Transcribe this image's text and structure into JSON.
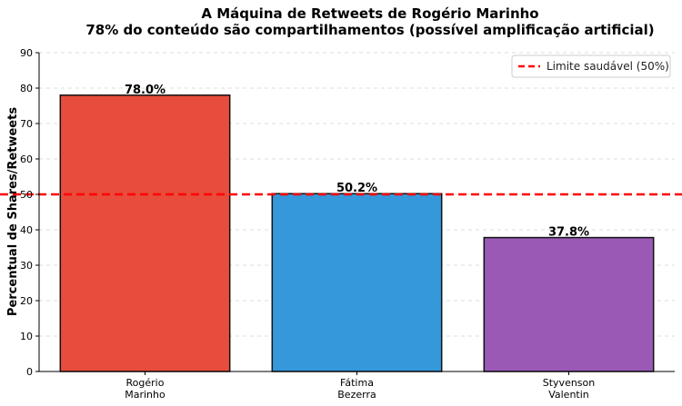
{
  "chart_data": {
    "type": "bar",
    "title": "A Máquina de Retweets de Rogério Marinho",
    "subtitle": "78% do conteúdo são compartilhamentos (possível amplificação artificial)",
    "xlabel": "",
    "ylabel": "Percentual de Shares/Retweets",
    "categories": [
      [
        "Rogério",
        "Marinho"
      ],
      [
        "Fátima",
        "Bezerra"
      ],
      [
        "Styvenson",
        "Valentin"
      ]
    ],
    "values": [
      78.0,
      50.2,
      37.8
    ],
    "value_labels": [
      "78.0%",
      "50.2%",
      "37.8%"
    ],
    "bar_colors": [
      "#e74c3c",
      "#3498db",
      "#9b59b6"
    ],
    "ylim": [
      0,
      90
    ],
    "yticks": [
      0,
      10,
      20,
      30,
      40,
      50,
      60,
      70,
      80,
      90
    ],
    "grid": true,
    "reference_line": {
      "value": 50,
      "label": "Limite saudável (50%)",
      "color": "#ff0000"
    },
    "legend_position": "top-right"
  }
}
